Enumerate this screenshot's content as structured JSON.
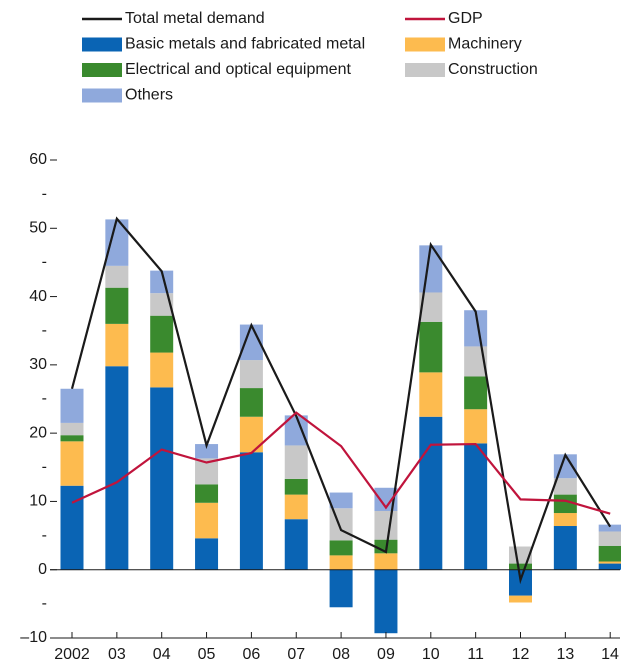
{
  "chart_data": {
    "type": "bar",
    "categories": [
      "2002",
      "03",
      "04",
      "05",
      "06",
      "07",
      "08",
      "09",
      "10",
      "11",
      "12",
      "13",
      "14"
    ],
    "series": [
      {
        "name": "Total metal demand",
        "type": "line",
        "color": "#1a1a1a",
        "values": [
          26.5,
          51.4,
          43.7,
          18.2,
          35.8,
          22.5,
          5.8,
          2.6,
          47.6,
          37.8,
          -1.5,
          16.8,
          6.3
        ]
      },
      {
        "name": "GDP",
        "type": "line",
        "color": "#c0143c",
        "values": [
          9.8,
          12.8,
          17.6,
          15.7,
          17.1,
          23.0,
          18.1,
          9.1,
          18.3,
          18.4,
          10.3,
          10.1,
          8.2
        ]
      },
      {
        "name": "Basic metals and fabricated metal",
        "type": "bar",
        "color": "#0a64b4",
        "values": [
          12.3,
          29.8,
          26.7,
          4.6,
          17.2,
          7.4,
          -5.5,
          -9.3,
          22.4,
          18.5,
          -3.8,
          6.4,
          0.9
        ]
      },
      {
        "name": "Machinery",
        "type": "bar",
        "color": "#fdbb4f",
        "values": [
          6.5,
          6.2,
          5.1,
          5.2,
          5.2,
          3.6,
          2.1,
          2.4,
          6.5,
          5.0,
          -1.0,
          1.9,
          0.3
        ]
      },
      {
        "name": "Electrical and optical equipment",
        "type": "bar",
        "color": "#3a8a2e",
        "values": [
          0.9,
          5.3,
          5.4,
          2.7,
          4.2,
          2.3,
          2.2,
          2.0,
          7.4,
          4.8,
          0.9,
          2.7,
          2.3
        ]
      },
      {
        "name": "Construction",
        "type": "bar",
        "color": "#c8c8c8",
        "values": [
          1.8,
          3.2,
          3.3,
          3.8,
          4.1,
          4.9,
          4.7,
          4.2,
          4.3,
          4.4,
          2.5,
          2.4,
          2.1
        ]
      },
      {
        "name": "Others",
        "type": "bar",
        "color": "#8fa9dc",
        "values": [
          5.0,
          6.8,
          3.3,
          2.1,
          5.2,
          4.4,
          2.3,
          3.4,
          6.9,
          5.3,
          0,
          3.5,
          1.0
        ]
      }
    ],
    "ylim": [
      -10,
      60
    ],
    "yticks": [
      {
        "value": -10,
        "label": "–10"
      },
      0,
      10,
      20,
      30,
      40,
      50,
      60
    ],
    "yminorticks": [
      {
        "value": -5,
        "label": "-"
      },
      {
        "value": 5,
        "label": "-"
      },
      {
        "value": 15,
        "label": "-"
      },
      {
        "value": 25,
        "label": "-"
      },
      {
        "value": 35,
        "label": "-"
      },
      {
        "value": 45,
        "label": "-"
      },
      {
        "value": 55,
        "label": "-"
      }
    ]
  }
}
